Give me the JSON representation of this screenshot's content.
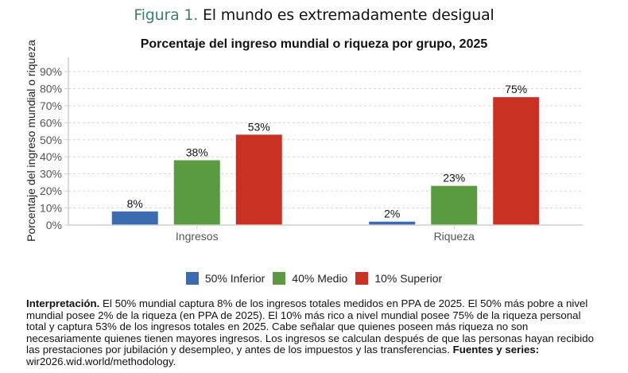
{
  "figure": {
    "prefix": "Figura 1.",
    "title": "El mundo es extremadamente desigual"
  },
  "chart_data": {
    "type": "bar",
    "title": "Porcentaje del ingreso mundial o riqueza por grupo, 2025",
    "xlabel": "",
    "ylabel": "Porcentaje del ingreso mundial o riqueza",
    "ylim": [
      0,
      95
    ],
    "yticks": [
      "0%",
      "10%",
      "20%",
      "30%",
      "40%",
      "50%",
      "60%",
      "70%",
      "80%",
      "90%"
    ],
    "ytick_values": [
      0,
      10,
      20,
      30,
      40,
      50,
      60,
      70,
      80,
      90
    ],
    "grid": true,
    "legend_position": "bottom",
    "categories": [
      "Ingresos",
      "Riqueza"
    ],
    "series": [
      {
        "name": "50% Inferior",
        "color": "#3b6bb0",
        "values": [
          8,
          2
        ],
        "labels": [
          "8%",
          "2%"
        ]
      },
      {
        "name": "40% Medio",
        "color": "#5a9b41",
        "values": [
          38,
          23
        ],
        "labels": [
          "38%",
          "23%"
        ]
      },
      {
        "name": "10% Superior",
        "color": "#c93123",
        "values": [
          53,
          75
        ],
        "labels": [
          "53%",
          "75%"
        ]
      }
    ]
  },
  "interpretation": {
    "lead": "Interpretación.",
    "body": " El 50% mundial captura 8% de los ingresos totales medidos en PPA de 2025. El 50% más pobre a nivel mundial posee 2% de la riqueza (en PPA de 2025). El 10% más rico a nivel mundial posee 75% de la riqueza personal total y captura 53% de los ingresos totales en 2025. Cabe señalar que quienes poseen más riqueza no son necesariamente quienes tienen mayores ingresos. Los ingresos se calculan después de que las personas hayan recibido las prestaciones por jubilación y desempleo, y antes de los impuestos y las transferencias. ",
    "sources_label": "Fuentes y series:",
    "sources_value": " wir2026.wid.world/methodology."
  }
}
